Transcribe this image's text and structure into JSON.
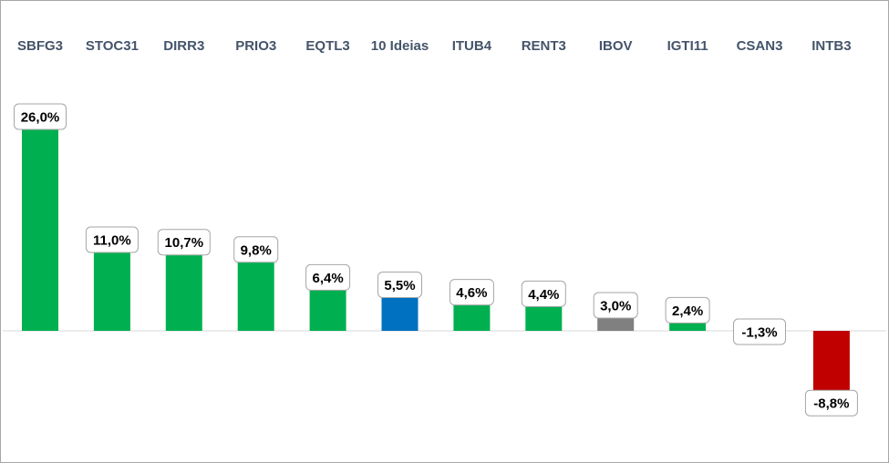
{
  "chart_data": {
    "type": "bar",
    "title": "",
    "xlabel": "",
    "ylabel": "",
    "ylim": [
      -8.8,
      26.0
    ],
    "grid": false,
    "legend": "none",
    "categories": [
      "SBFG3",
      "STOC31",
      "DIRR3",
      "PRIO3",
      "EQTL3",
      "10 Ideias",
      "ITUB4",
      "RENT3",
      "IBOV",
      "IGTI11",
      "CSAN3",
      "INTB3"
    ],
    "values": [
      26.0,
      11.0,
      10.7,
      9.8,
      6.4,
      5.5,
      4.6,
      4.4,
      3.0,
      2.4,
      -1.3,
      -8.8
    ],
    "labels": [
      "26,0%",
      "11,0%",
      "10,7%",
      "9,8%",
      "6,4%",
      "5,5%",
      "4,6%",
      "4,4%",
      "3,0%",
      "2,4%",
      "-1,3%",
      "-8,8%"
    ],
    "colors": [
      "#00b050",
      "#00b050",
      "#00b050",
      "#00b050",
      "#00b050",
      "#0070c0",
      "#00b050",
      "#00b050",
      "#808080",
      "#00b050",
      "#00b050",
      "#c00000"
    ],
    "category_label_color": "#44546a"
  }
}
